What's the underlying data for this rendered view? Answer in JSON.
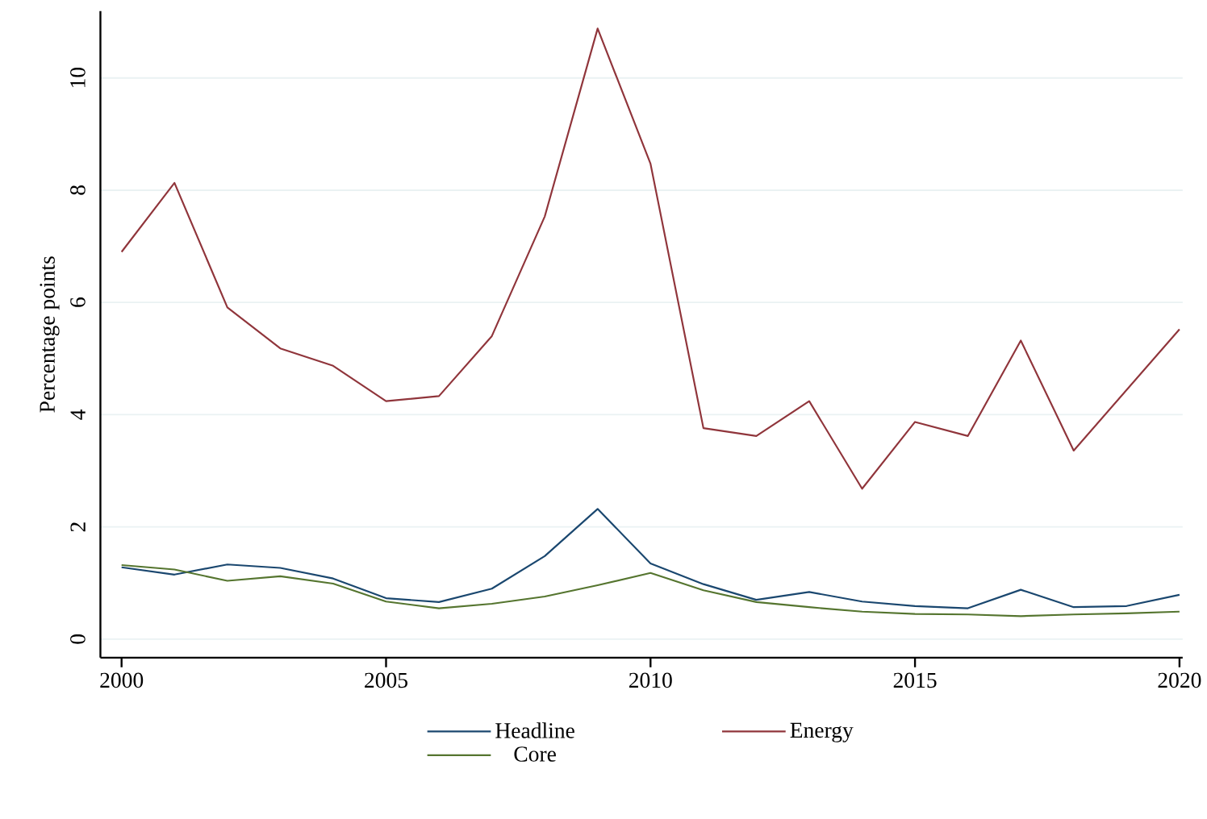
{
  "chart_data": {
    "type": "line",
    "ylabel": "Percentage points",
    "x": [
      2000,
      2001,
      2002,
      2003,
      2004,
      2005,
      2006,
      2007,
      2008,
      2009,
      2010,
      2011,
      2012,
      2013,
      2014,
      2015,
      2016,
      2017,
      2018,
      2019,
      2020
    ],
    "series": [
      {
        "name": "Headline",
        "color": "#1a476f",
        "values": [
          1.28,
          1.15,
          1.33,
          1.27,
          1.08,
          0.73,
          0.66,
          0.9,
          1.48,
          2.32,
          1.35,
          0.98,
          0.7,
          0.84,
          0.67,
          0.59,
          0.55,
          0.88,
          0.57,
          0.59,
          0.79
        ]
      },
      {
        "name": "Energy",
        "color": "#90353b",
        "values": [
          6.9,
          8.13,
          5.91,
          5.18,
          4.87,
          4.24,
          4.33,
          5.4,
          7.53,
          10.88,
          8.47,
          3.76,
          3.62,
          4.24,
          2.68,
          3.87,
          3.62,
          5.32,
          3.36,
          4.44,
          5.52
        ]
      },
      {
        "name": "Core",
        "color": "#55752f",
        "values": [
          1.32,
          1.24,
          1.04,
          1.12,
          0.99,
          0.67,
          0.55,
          0.63,
          0.76,
          0.96,
          1.18,
          0.87,
          0.66,
          0.57,
          0.49,
          0.45,
          0.44,
          0.41,
          0.44,
          0.46,
          0.49
        ]
      }
    ],
    "xlim": [
      1999.6,
      2020.06
    ],
    "ylim": [
      -0.33,
      11.19
    ],
    "xticks": [
      2000,
      2005,
      2010,
      2015,
      2020
    ],
    "yticks": [
      0,
      2,
      4,
      6,
      8,
      10
    ],
    "grid": "y",
    "legend": "bottom",
    "marker": "none",
    "line_style": "solid"
  }
}
